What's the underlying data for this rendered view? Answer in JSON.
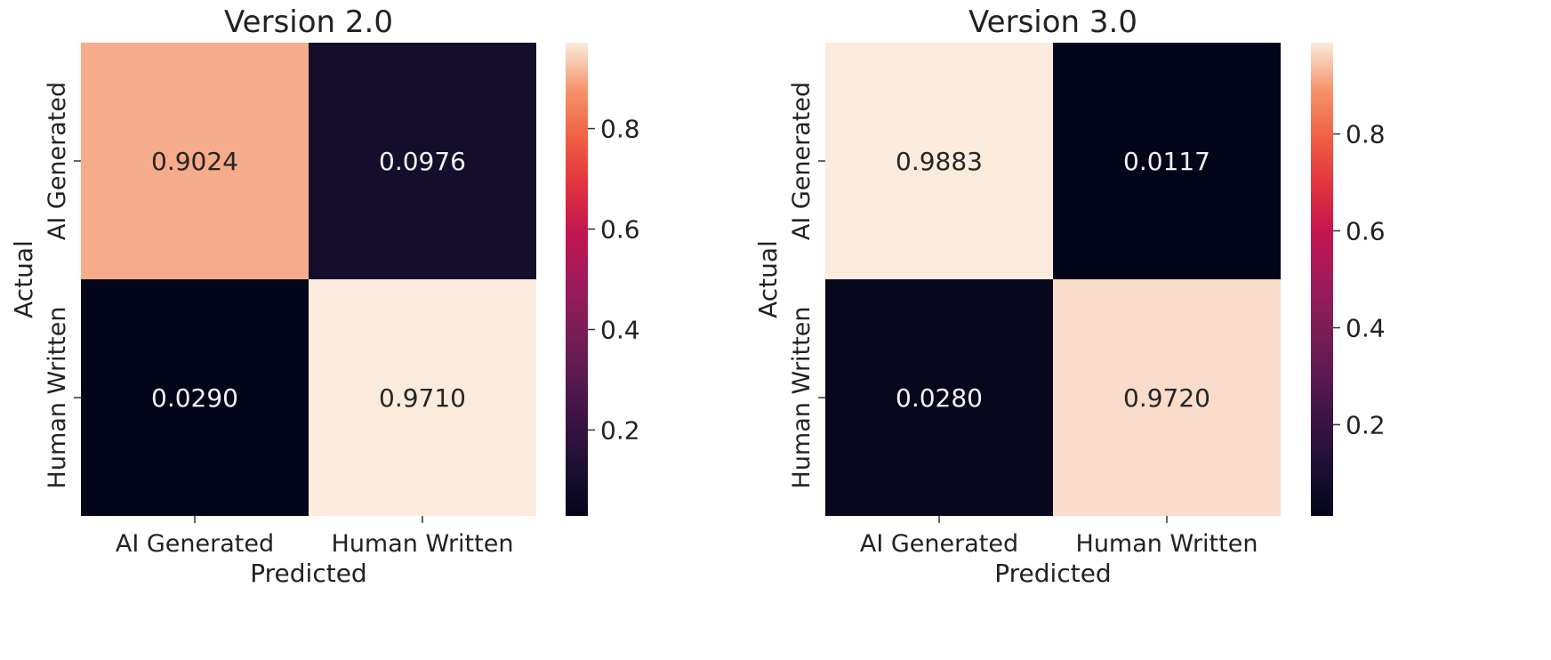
{
  "chart_data": [
    {
      "type": "heatmap",
      "title": "Version 2.0",
      "xlabel": "Predicted",
      "ylabel": "Actual",
      "x_categories": [
        "AI Generated",
        "Human Written"
      ],
      "y_categories": [
        "AI Generated",
        "Human Written"
      ],
      "values": [
        [
          0.9024,
          0.0976
        ],
        [
          0.029,
          0.971
        ]
      ],
      "value_labels": [
        [
          "0.9024",
          "0.0976"
        ],
        [
          "0.0290",
          "0.9710"
        ]
      ],
      "colorbar": {
        "range": [
          0.029,
          0.971
        ],
        "ticks": [
          0.2,
          0.4,
          0.6,
          0.8
        ],
        "tick_labels": [
          "0.2",
          "0.4",
          "0.6",
          "0.8"
        ]
      },
      "colormap": "rocket"
    },
    {
      "type": "heatmap",
      "title": "Version 3.0",
      "xlabel": "Predicted",
      "ylabel": "Actual",
      "x_categories": [
        "AI Generated",
        "Human Written"
      ],
      "y_categories": [
        "AI Generated",
        "Human Written"
      ],
      "values": [
        [
          0.9883,
          0.0117
        ],
        [
          0.028,
          0.972
        ]
      ],
      "value_labels": [
        [
          "0.9883",
          "0.0117"
        ],
        [
          "0.0280",
          "0.9720"
        ]
      ],
      "colorbar": {
        "range": [
          0.0117,
          0.9883
        ],
        "ticks": [
          0.2,
          0.4,
          0.6,
          0.8
        ],
        "tick_labels": [
          "0.2",
          "0.4",
          "0.6",
          "0.8"
        ]
      },
      "colormap": "rocket"
    }
  ]
}
